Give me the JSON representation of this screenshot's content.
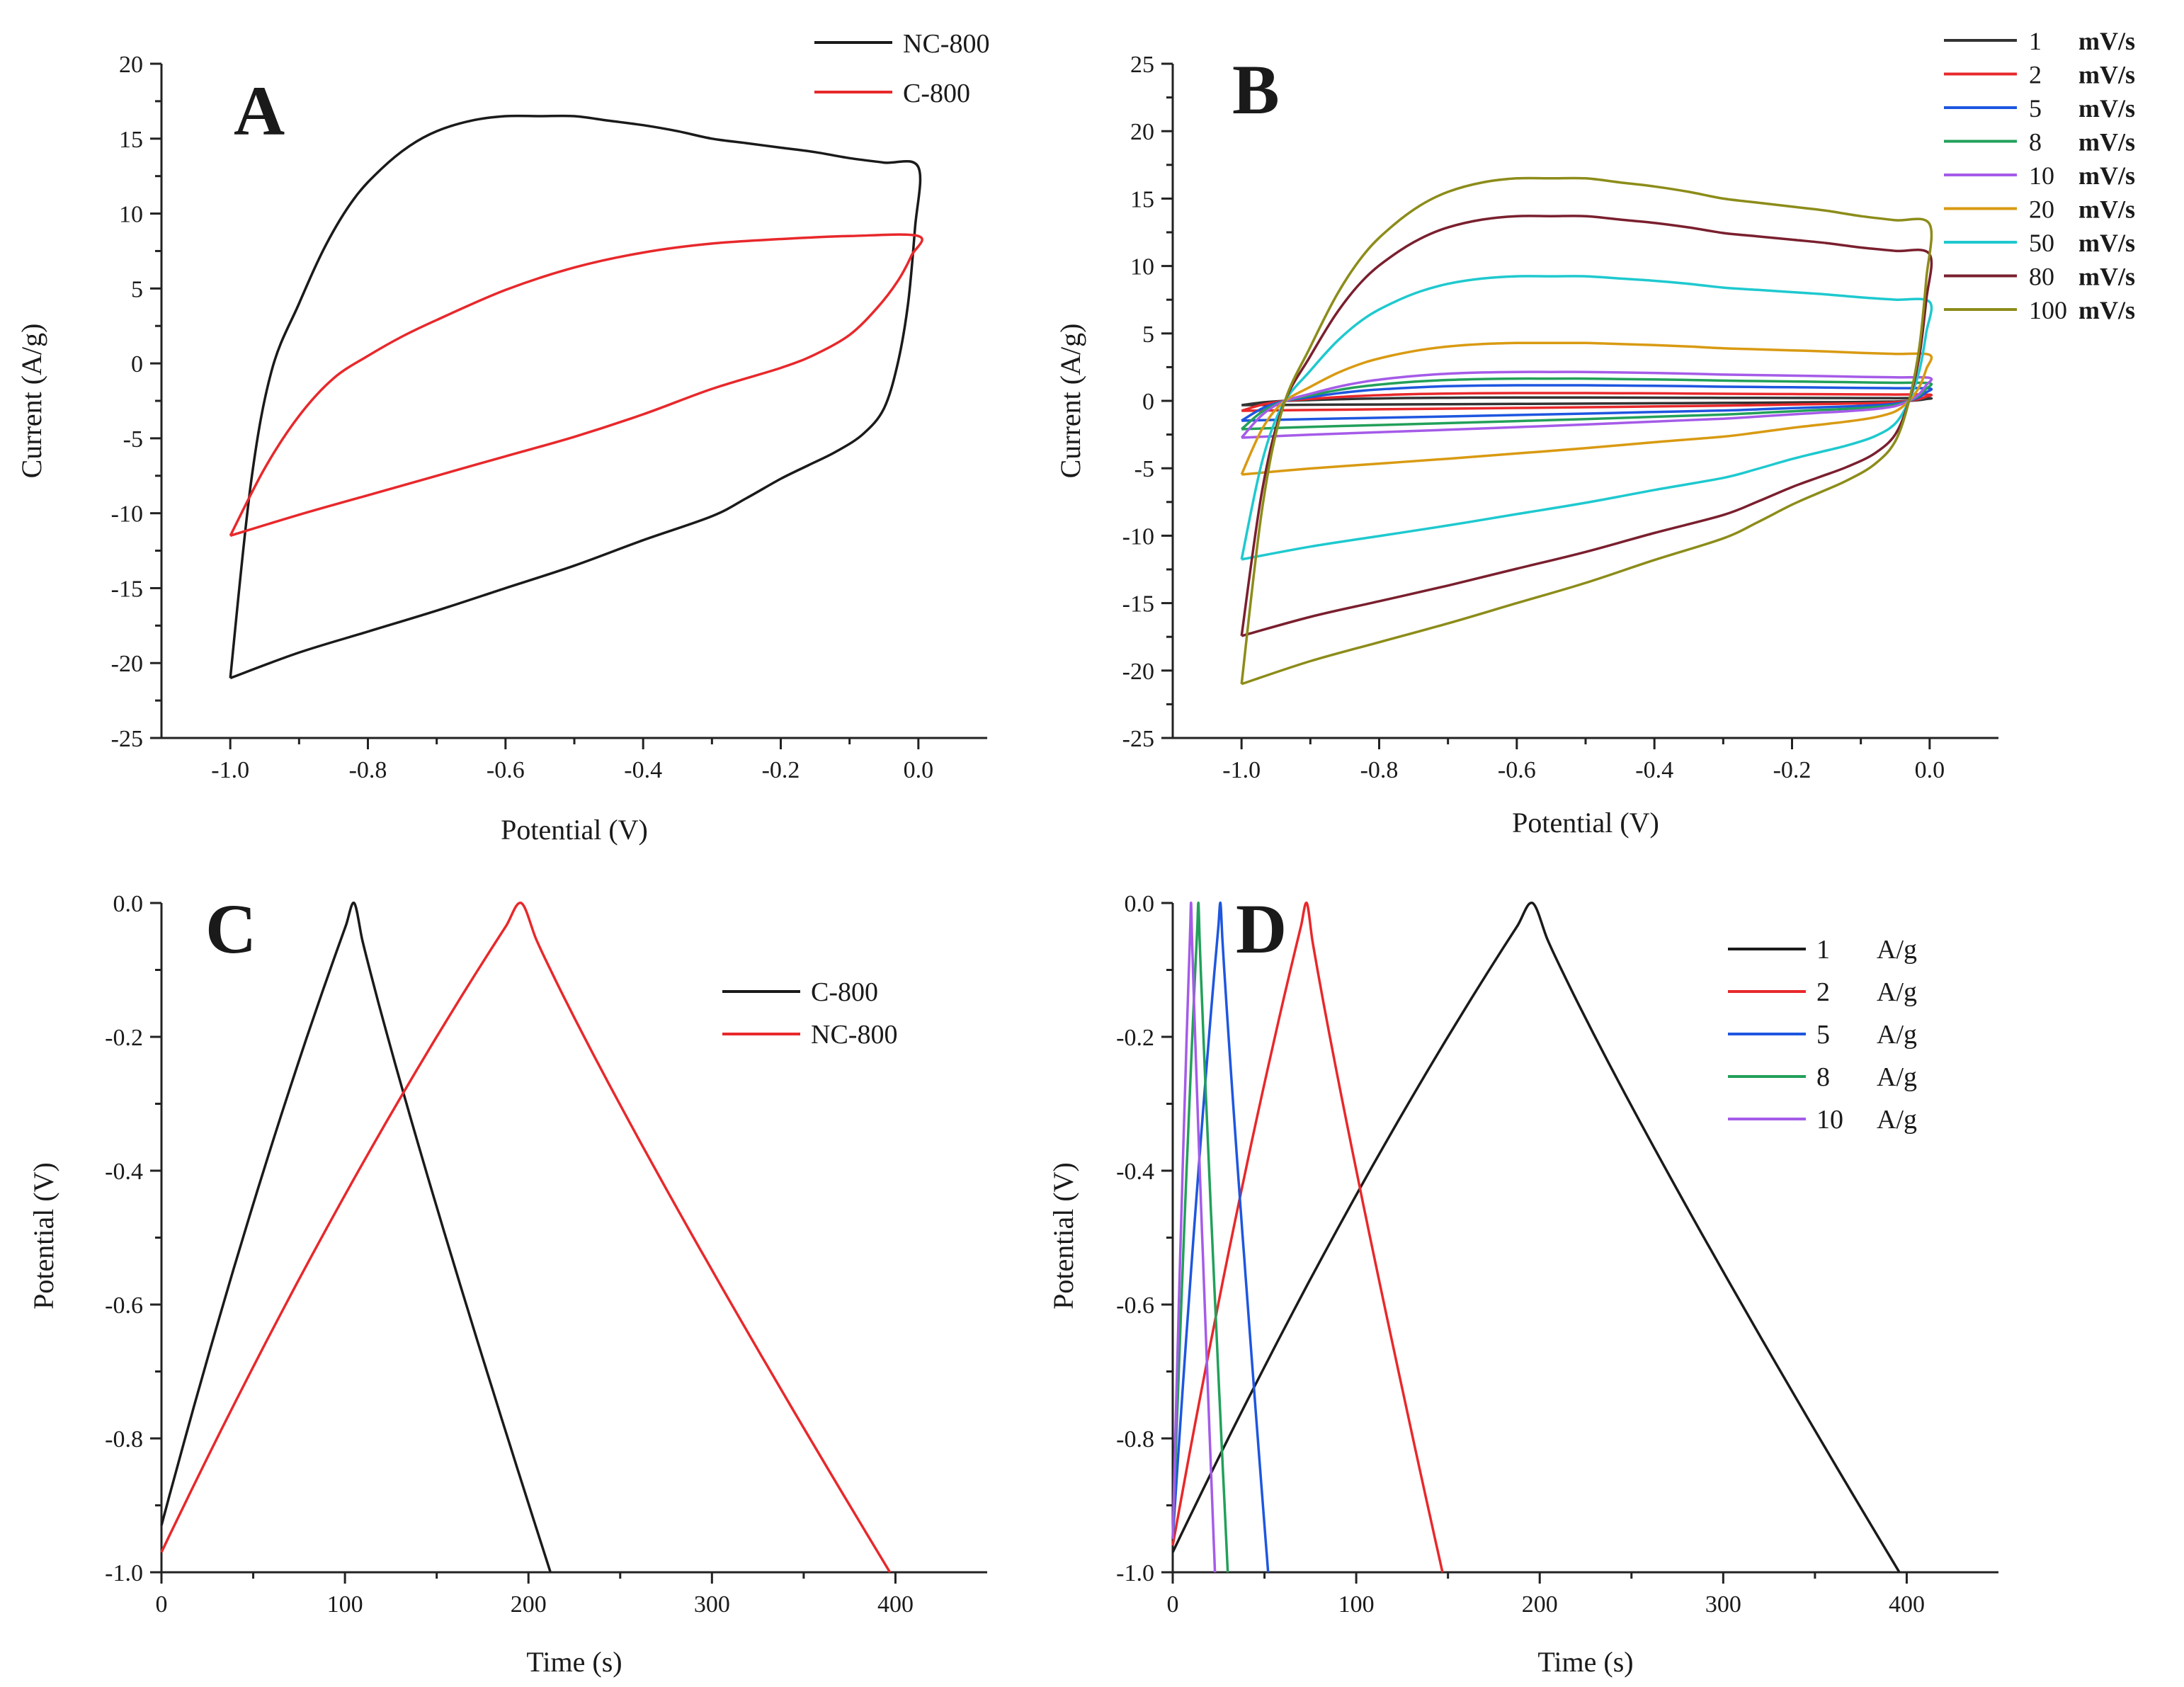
{
  "chart_data": [
    {
      "panel": "A",
      "type": "line",
      "xlabel": "Potential (V)",
      "ylabel": "Current (A/g)",
      "xlim": [
        -1.1,
        0.1
      ],
      "ylim": [
        -25,
        20
      ],
      "xticks": [
        -1.0,
        -0.8,
        -0.6,
        -0.4,
        -0.2,
        0.0
      ],
      "xtick_labels": [
        "-1.0",
        "-0.8",
        "-0.6",
        "-0.4",
        "-0.2",
        "0.0"
      ],
      "yticks": [
        -25,
        -20,
        -15,
        -10,
        -5,
        0,
        5,
        10,
        15,
        20
      ],
      "ytick_labels": [
        "-25",
        "-20",
        "-15",
        "-10",
        "-5",
        "0",
        "5",
        "10",
        "15",
        "20"
      ],
      "legend_position": "top-right",
      "series": [
        {
          "name": "NC-800",
          "color": "#1a1a1a",
          "x": [
            -1.0,
            -0.97,
            -0.94,
            -0.9,
            -0.86,
            -0.82,
            -0.78,
            -0.74,
            -0.7,
            -0.65,
            -0.6,
            -0.55,
            -0.5,
            -0.45,
            -0.4,
            -0.35,
            -0.3,
            -0.25,
            -0.2,
            -0.15,
            -0.1,
            -0.05,
            0.0,
            -0.005,
            -0.015,
            -0.03,
            -0.05,
            -0.08,
            -0.12,
            -0.16,
            -0.2,
            -0.25,
            -0.3,
            -0.4,
            -0.5,
            -0.6,
            -0.7,
            -0.8,
            -0.9,
            -1.0
          ],
          "y": [
            -21,
            -8,
            -0.5,
            4,
            8,
            11,
            13,
            14.5,
            15.5,
            16.2,
            16.5,
            16.5,
            16.5,
            16.2,
            15.9,
            15.5,
            15,
            14.7,
            14.4,
            14.1,
            13.7,
            13.4,
            13.1,
            9,
            4,
            0,
            -3,
            -4.7,
            -5.9,
            -6.8,
            -7.7,
            -9,
            -10.2,
            -11.8,
            -13.5,
            -15,
            -16.5,
            -17.9,
            -19.3,
            -21
          ]
        },
        {
          "name": "C-800",
          "color": "#e8282b",
          "x": [
            -1.0,
            -0.95,
            -0.9,
            -0.85,
            -0.8,
            -0.75,
            -0.7,
            -0.6,
            -0.5,
            -0.4,
            -0.3,
            -0.2,
            -0.1,
            0.0,
            -0.01,
            -0.03,
            -0.06,
            -0.1,
            -0.15,
            -0.2,
            -0.3,
            -0.4,
            -0.5,
            -0.6,
            -0.7,
            -0.8,
            -0.9,
            -1.0
          ],
          "y": [
            -11.5,
            -7,
            -3.5,
            -1,
            0.5,
            1.8,
            2.9,
            4.9,
            6.4,
            7.4,
            8,
            8.3,
            8.5,
            8.5,
            7.2,
            5.5,
            3.7,
            1.9,
            0.6,
            -0.3,
            -1.7,
            -3.4,
            -4.9,
            -6.2,
            -7.5,
            -8.8,
            -10.1,
            -11.5
          ]
        }
      ]
    },
    {
      "panel": "B",
      "type": "line",
      "xlabel": "Potential (V)",
      "ylabel": "Current (A/g)",
      "xlim": [
        -1.1,
        0.1
      ],
      "ylim": [
        -25,
        25
      ],
      "xticks": [
        -1.0,
        -0.8,
        -0.6,
        -0.4,
        -0.2,
        0.0
      ],
      "xtick_labels": [
        "-1.0",
        "-0.8",
        "-0.6",
        "-0.4",
        "-0.2",
        "0.0"
      ],
      "yticks": [
        -25,
        -20,
        -15,
        -10,
        -5,
        0,
        5,
        10,
        15,
        20,
        25
      ],
      "ytick_labels": [
        "-25",
        "-20",
        "-15",
        "-10",
        "-5",
        "0",
        "5",
        "10",
        "15",
        "20",
        "25"
      ],
      "legend_position": "top-right",
      "series": [
        {
          "name": "1",
          "unit": "mV/s",
          "color": "#333333",
          "scale": 0.015
        },
        {
          "name": "2",
          "unit": "mV/s",
          "color": "#e8282b",
          "scale": 0.035
        },
        {
          "name": "5",
          "unit": "mV/s",
          "color": "#1e56e0",
          "scale": 0.07
        },
        {
          "name": "8",
          "unit": "mV/s",
          "color": "#22a05a",
          "scale": 0.1
        },
        {
          "name": "10",
          "unit": "mV/s",
          "color": "#a55be8",
          "scale": 0.13
        },
        {
          "name": "20",
          "unit": "mV/s",
          "color": "#d99a12",
          "scale": 0.26
        },
        {
          "name": "50",
          "unit": "mV/s",
          "color": "#1ec9cf",
          "scale": 0.56
        },
        {
          "name": "80",
          "unit": "mV/s",
          "color": "#7a1f2e",
          "scale": 0.83
        },
        {
          "name": "100",
          "unit": "mV/s",
          "color": "#8c8c1a",
          "scale": 1.0
        }
      ]
    },
    {
      "panel": "C",
      "type": "line",
      "xlabel": "Time (s)",
      "ylabel": "Potential (V)",
      "xlim": [
        0,
        450
      ],
      "ylim": [
        -1.0,
        0.0
      ],
      "xticks": [
        0,
        100,
        200,
        300,
        400
      ],
      "xtick_labels": [
        "0",
        "100",
        "200",
        "300",
        "400"
      ],
      "yticks": [
        -1.0,
        -0.8,
        -0.6,
        -0.4,
        -0.2,
        0.0
      ],
      "ytick_labels": [
        "-1.0",
        "-0.8",
        "-0.6",
        "-0.4",
        "-0.2",
        "0.0"
      ],
      "legend_position": "right",
      "series": [
        {
          "name": "C-800",
          "color": "#1a1a1a",
          "t_start": 0,
          "v_start": -0.93,
          "t_peak": 105,
          "t_end": 212
        },
        {
          "name": "NC-800",
          "color": "#e8282b",
          "t_start": 0,
          "v_start": -0.97,
          "t_peak": 196,
          "t_end": 397
        }
      ]
    },
    {
      "panel": "D",
      "type": "line",
      "xlabel": "Time (s)",
      "ylabel": "Potential (V)",
      "xlim": [
        0,
        450
      ],
      "ylim": [
        -1.0,
        0.0
      ],
      "xticks": [
        0,
        100,
        200,
        300,
        400
      ],
      "xtick_labels": [
        "0",
        "100",
        "200",
        "300",
        "400"
      ],
      "yticks": [
        -1.0,
        -0.8,
        -0.6,
        -0.4,
        -0.2,
        0.0
      ],
      "ytick_labels": [
        "-1.0",
        "-0.8",
        "-0.6",
        "-0.4",
        "-0.2",
        "0.0"
      ],
      "legend_position": "top-right",
      "series": [
        {
          "name": "1",
          "unit": "A/g",
          "color": "#1a1a1a",
          "t_start": 0,
          "v_start": -0.97,
          "t_peak": 196,
          "t_end": 396
        },
        {
          "name": "2",
          "unit": "A/g",
          "color": "#e8282b",
          "t_start": 0,
          "v_start": -0.96,
          "t_peak": 73,
          "t_end": 147
        },
        {
          "name": "5",
          "unit": "A/g",
          "color": "#1e56e0",
          "t_start": 0,
          "v_start": -0.95,
          "t_peak": 26,
          "t_end": 52
        },
        {
          "name": "8",
          "unit": "A/g",
          "color": "#22a05a",
          "t_start": 0,
          "v_start": -0.95,
          "t_peak": 14,
          "t_end": 30
        },
        {
          "name": "10",
          "unit": "A/g",
          "color": "#a55be8",
          "t_start": 0,
          "v_start": -0.95,
          "t_peak": 10,
          "t_end": 23
        }
      ]
    }
  ],
  "panels": {
    "A": {
      "letter": "A"
    },
    "B": {
      "letter": "B"
    },
    "C": {
      "letter": "C"
    },
    "D": {
      "letter": "D"
    }
  }
}
